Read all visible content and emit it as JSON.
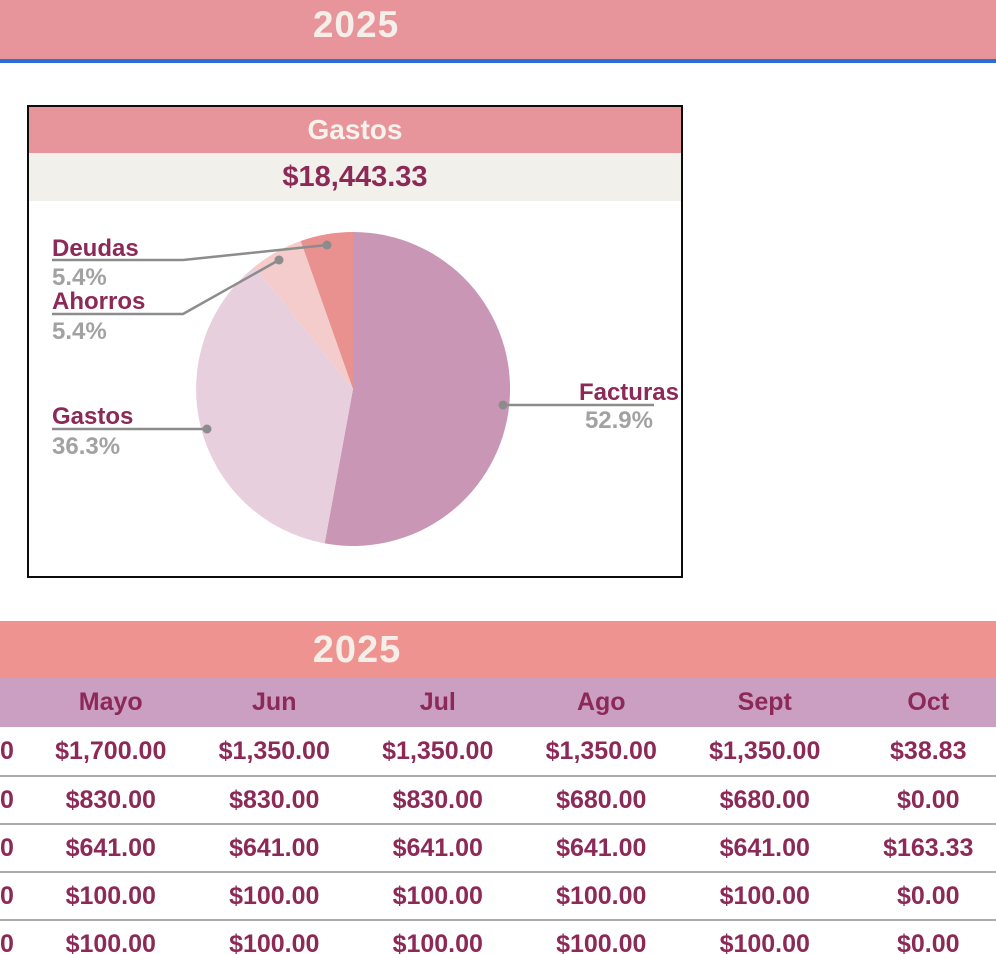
{
  "top_banner": {
    "year": "2025"
  },
  "card": {
    "title": "Gastos",
    "total": "$18,443.33"
  },
  "chart_data": {
    "type": "pie",
    "title": "Gastos",
    "total_label": "$18,443.33",
    "start_angle": "12-oclock",
    "direction": "clockwise",
    "legend_position": "callout-labels",
    "slices": [
      {
        "label": "Facturas",
        "value": 52.9,
        "pct_label": "52.9%",
        "color": "#c996b5"
      },
      {
        "label": "Gastos",
        "value": 36.3,
        "pct_label": "36.3%",
        "color": "#e8cfde"
      },
      {
        "label": "Ahorros",
        "value": 5.4,
        "pct_label": "5.4%",
        "color": "#f4cccb"
      },
      {
        "label": "Deudas",
        "value": 5.4,
        "pct_label": "5.4%",
        "color": "#e9918e"
      }
    ]
  },
  "table": {
    "year": "2025",
    "months": [
      "Mayo",
      "Jun",
      "Jul",
      "Ago",
      "Sept",
      "Oct"
    ],
    "rows": [
      {
        "left_fragment": "0",
        "values": [
          "$1,700.00",
          "$1,350.00",
          "$1,350.00",
          "$1,350.00",
          "$1,350.00",
          "$38.83"
        ]
      },
      {
        "left_fragment": "0",
        "values": [
          "$830.00",
          "$830.00",
          "$830.00",
          "$680.00",
          "$680.00",
          "$0.00"
        ]
      },
      {
        "left_fragment": "0",
        "values": [
          "$641.00",
          "$641.00",
          "$641.00",
          "$641.00",
          "$641.00",
          "$163.33"
        ]
      },
      {
        "left_fragment": "0",
        "values": [
          "$100.00",
          "$100.00",
          "$100.00",
          "$100.00",
          "$100.00",
          "$0.00"
        ]
      },
      {
        "left_fragment": "0",
        "values": [
          "$100.00",
          "$100.00",
          "$100.00",
          "$100.00",
          "$100.00",
          "$0.00"
        ]
      }
    ]
  },
  "colors": {
    "banner_salmon": "#e7959b",
    "table_salmon": "#ee938f",
    "month_band_mauve": "#cb9fc2",
    "maroon_text": "#8c2957",
    "gray_text": "#a2a2a2",
    "divider_blue": "#2a6fd9",
    "leader_gray": "#8c8c8c",
    "card_total_bg": "#f2f0ea"
  }
}
